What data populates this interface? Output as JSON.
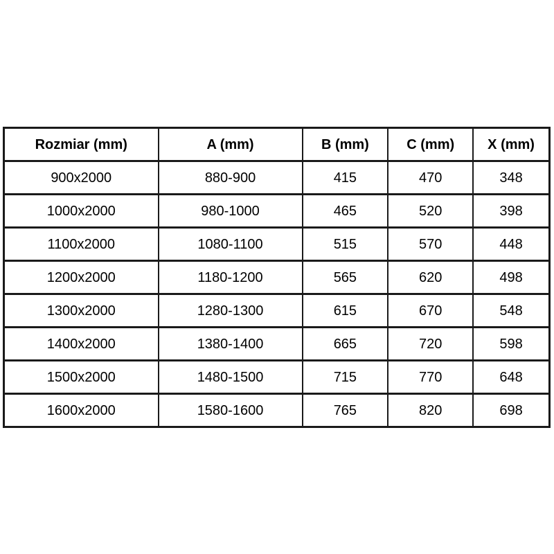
{
  "colors": {
    "background": "#ffffff",
    "border": "#1a1a1a",
    "text": "#000000"
  },
  "table": {
    "headers": [
      "Rozmiar (mm)",
      "A (mm)",
      "B (mm)",
      "C (mm)",
      "X (mm)"
    ],
    "rows": [
      [
        "900x2000",
        "880-900",
        "415",
        "470",
        "348"
      ],
      [
        "1000x2000",
        "980-1000",
        "465",
        "520",
        "398"
      ],
      [
        "1100x2000",
        "1080-1100",
        "515",
        "570",
        "448"
      ],
      [
        "1200x2000",
        "1180-1200",
        "565",
        "620",
        "498"
      ],
      [
        "1300x2000",
        "1280-1300",
        "615",
        "670",
        "548"
      ],
      [
        "1400x2000",
        "1380-1400",
        "665",
        "720",
        "598"
      ],
      [
        "1500x2000",
        "1480-1500",
        "715",
        "770",
        "648"
      ],
      [
        "1600x2000",
        "1580-1600",
        "765",
        "820",
        "698"
      ]
    ]
  },
  "chart_data": {
    "type": "table",
    "columns": [
      "Rozmiar (mm)",
      "A (mm)",
      "B (mm)",
      "C (mm)",
      "X (mm)"
    ],
    "rows": [
      [
        "900x2000",
        "880-900",
        415,
        470,
        348
      ],
      [
        "1000x2000",
        "980-1000",
        465,
        520,
        398
      ],
      [
        "1100x2000",
        "1080-1100",
        515,
        570,
        448
      ],
      [
        "1200x2000",
        "1180-1200",
        565,
        620,
        498
      ],
      [
        "1300x2000",
        "1280-1300",
        615,
        670,
        548
      ],
      [
        "1400x2000",
        "1380-1400",
        665,
        720,
        598
      ],
      [
        "1500x2000",
        "1480-1500",
        715,
        770,
        648
      ],
      [
        "1600x2000",
        "1580-1600",
        765,
        820,
        698
      ]
    ],
    "layout_hints": {
      "grid": "all-borders",
      "header_style": "bold",
      "cell_alignment": "center"
    }
  }
}
